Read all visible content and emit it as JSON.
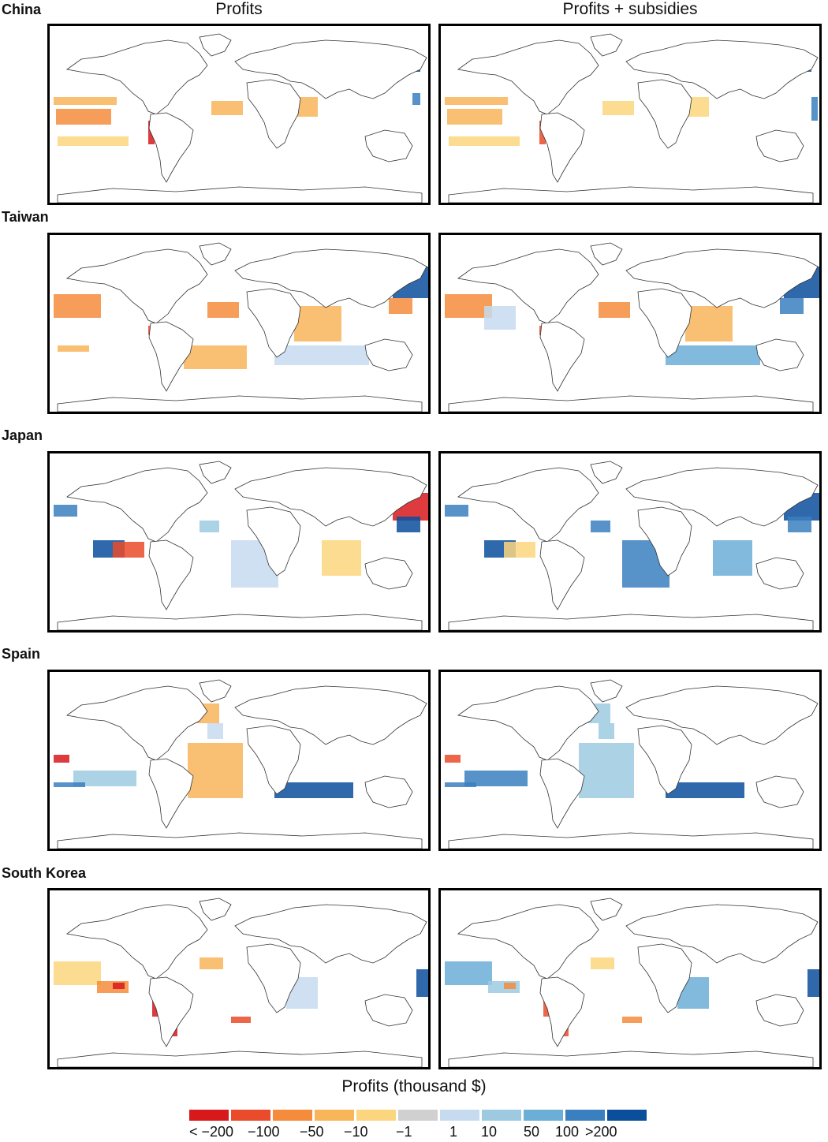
{
  "columns": [
    {
      "id": "profits",
      "title": "Profits"
    },
    {
      "id": "profits_subsidies",
      "title": "Profits + subsidies"
    }
  ],
  "rows": [
    {
      "id": "china",
      "label": "China"
    },
    {
      "id": "taiwan",
      "label": "Taiwan"
    },
    {
      "id": "japan",
      "label": "Japan"
    },
    {
      "id": "spain",
      "label": "Spain"
    },
    {
      "id": "south_korea",
      "label": "South Korea"
    }
  ],
  "legend": {
    "title": "Profits (thousand $)",
    "bins": [
      {
        "color": "#d7191c"
      },
      {
        "color": "#ea4b2a"
      },
      {
        "color": "#f58c3c"
      },
      {
        "color": "#f8b55a"
      },
      {
        "color": "#fbd67e"
      },
      {
        "color": "#d0d0d0"
      },
      {
        "color": "#c6dbef"
      },
      {
        "color": "#9ecae1"
      },
      {
        "color": "#6baed6"
      },
      {
        "color": "#3a7fc0"
      },
      {
        "color": "#0b4f9c"
      }
    ],
    "labels": [
      "< −200",
      "−100",
      "−50",
      "−10",
      "−1",
      "1",
      "10",
      "50",
      "100",
      ">200"
    ]
  }
}
